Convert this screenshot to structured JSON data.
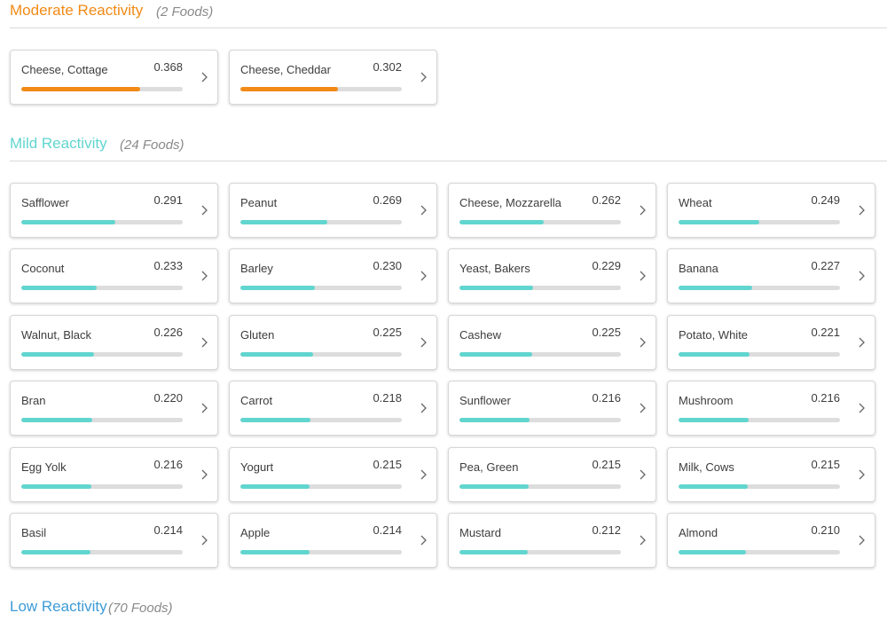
{
  "colors": {
    "moderate": "#f28a16",
    "mild": "#61d5cf",
    "low": "#3d9bd6"
  },
  "sections": [
    {
      "key": "moderate",
      "title": "Moderate Reactivity",
      "count": "(2 Foods)",
      "color": "#f28a16",
      "foods": [
        {
          "name": "Cheese, Cottage",
          "score": "0.368",
          "fill": 0.736
        },
        {
          "name": "Cheese, Cheddar",
          "score": "0.302",
          "fill": 0.604
        }
      ]
    },
    {
      "key": "mild",
      "title": "Mild Reactivity",
      "count": "(24 Foods)",
      "color": "#61d5cf",
      "foods": [
        {
          "name": "Safflower",
          "score": "0.291",
          "fill": 0.582
        },
        {
          "name": "Peanut",
          "score": "0.269",
          "fill": 0.538
        },
        {
          "name": "Cheese, Mozzarella",
          "score": "0.262",
          "fill": 0.524
        },
        {
          "name": "Wheat",
          "score": "0.249",
          "fill": 0.498
        },
        {
          "name": "Coconut",
          "score": "0.233",
          "fill": 0.466
        },
        {
          "name": "Barley",
          "score": "0.230",
          "fill": 0.46
        },
        {
          "name": "Yeast, Bakers",
          "score": "0.229",
          "fill": 0.458
        },
        {
          "name": "Banana",
          "score": "0.227",
          "fill": 0.454
        },
        {
          "name": "Walnut, Black",
          "score": "0.226",
          "fill": 0.452
        },
        {
          "name": "Gluten",
          "score": "0.225",
          "fill": 0.45
        },
        {
          "name": "Cashew",
          "score": "0.225",
          "fill": 0.45
        },
        {
          "name": "Potato, White",
          "score": "0.221",
          "fill": 0.442
        },
        {
          "name": "Bran",
          "score": "0.220",
          "fill": 0.44
        },
        {
          "name": "Carrot",
          "score": "0.218",
          "fill": 0.436
        },
        {
          "name": "Sunflower",
          "score": "0.216",
          "fill": 0.432
        },
        {
          "name": "Mushroom",
          "score": "0.216",
          "fill": 0.432
        },
        {
          "name": "Egg Yolk",
          "score": "0.216",
          "fill": 0.432
        },
        {
          "name": "Yogurt",
          "score": "0.215",
          "fill": 0.43
        },
        {
          "name": "Pea, Green",
          "score": "0.215",
          "fill": 0.43
        },
        {
          "name": "Milk, Cows",
          "score": "0.215",
          "fill": 0.43
        },
        {
          "name": "Basil",
          "score": "0.214",
          "fill": 0.428
        },
        {
          "name": "Apple",
          "score": "0.214",
          "fill": 0.428
        },
        {
          "name": "Mustard",
          "score": "0.212",
          "fill": 0.424
        },
        {
          "name": "Almond",
          "score": "0.210",
          "fill": 0.42
        }
      ]
    },
    {
      "key": "low",
      "title": "Low Reactivity",
      "count": "(70 Foods)",
      "color": "#3d9bd6",
      "foods": []
    }
  ],
  "icons": {
    "card_action": "chevron-right-icon"
  }
}
